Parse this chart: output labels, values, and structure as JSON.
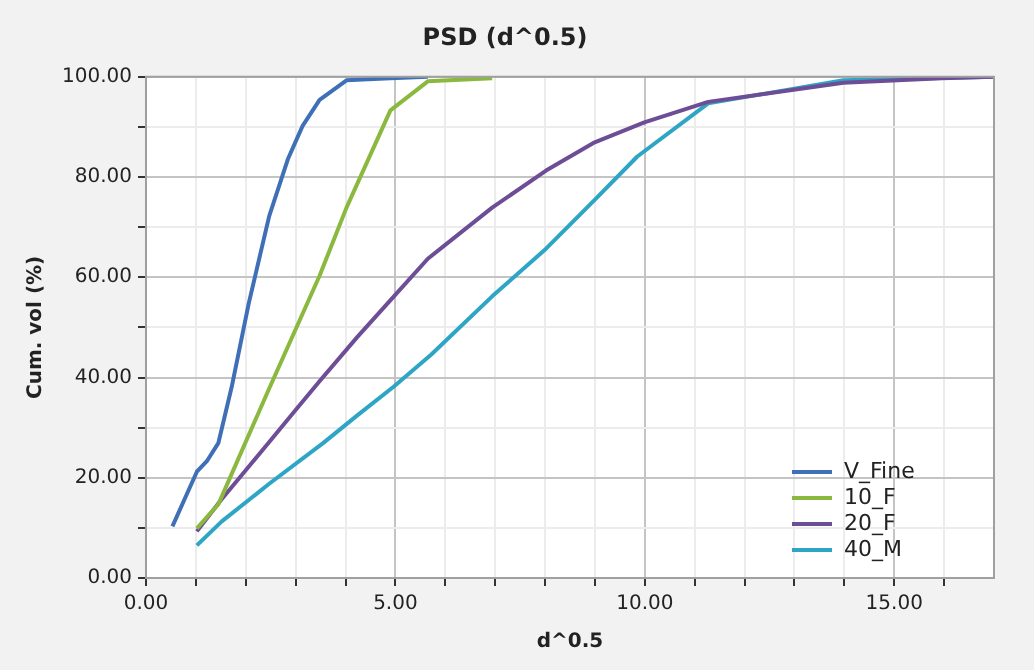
{
  "chart_data": {
    "type": "line",
    "title": "PSD (d^0.5)",
    "xlabel": "d^0.5",
    "ylabel": "Cum. vol (%)",
    "xlim": [
      0,
      17
    ],
    "xticks": [
      {
        "value": 0,
        "label": "0.00"
      },
      {
        "value": 1,
        "label": null
      },
      {
        "value": 2,
        "label": null
      },
      {
        "value": 3,
        "label": null
      },
      {
        "value": 4,
        "label": null
      },
      {
        "value": 5,
        "label": "5.00"
      },
      {
        "value": 6,
        "label": null
      },
      {
        "value": 7,
        "label": null
      },
      {
        "value": 8,
        "label": null
      },
      {
        "value": 9,
        "label": null
      },
      {
        "value": 10,
        "label": "10.00"
      },
      {
        "value": 11,
        "label": null
      },
      {
        "value": 12,
        "label": null
      },
      {
        "value": 13,
        "label": null
      },
      {
        "value": 14,
        "label": null
      },
      {
        "value": 15,
        "label": "15.00"
      },
      {
        "value": 16,
        "label": null
      }
    ],
    "ylim": [
      0,
      100
    ],
    "yticks": [
      {
        "value": 0,
        "label": "0.00"
      },
      {
        "value": 10,
        "label": null
      },
      {
        "value": 20,
        "label": "20.00"
      },
      {
        "value": 30,
        "label": null
      },
      {
        "value": 40,
        "label": "40.00"
      },
      {
        "value": 50,
        "label": null
      },
      {
        "value": 60,
        "label": "60.00"
      },
      {
        "value": 70,
        "label": null
      },
      {
        "value": 80,
        "label": "80.00"
      },
      {
        "value": 90,
        "label": null
      },
      {
        "value": 100,
        "label": "100.00"
      }
    ],
    "grid": true,
    "legend": "bottom right",
    "marker": "none",
    "line_style": "solid",
    "series": [
      {
        "name": "V_Fine",
        "color": "#3f6fb6",
        "x": [
          0.53,
          1.02,
          1.22,
          1.45,
          1.72,
          2.06,
          2.47,
          2.85,
          3.14,
          3.48,
          4.02,
          4.9,
          5.65
        ],
        "values": [
          10.3,
          21.2,
          23.3,
          26.9,
          38.2,
          54.8,
          72.2,
          83.7,
          90.2,
          95.4,
          99.3,
          99.7,
          100
        ]
      },
      {
        "name": "10_F",
        "color": "#8bb83e",
        "x": [
          1.02,
          1.45,
          2.47,
          3.48,
          4.02,
          4.9,
          5.65,
          6.94
        ],
        "values": [
          9.9,
          14.7,
          37.8,
          60.3,
          73.9,
          93.3,
          99.1,
          99.7
        ]
      },
      {
        "name": "20_F",
        "color": "#6e4d97",
        "x": [
          1.02,
          1.5,
          2,
          2.5,
          3,
          3.5,
          4.23,
          4.97,
          5.65,
          6.94,
          8.02,
          8.97,
          9.99,
          11.27,
          13.98,
          15.95,
          17
        ],
        "values": [
          9.3,
          15.5,
          21.5,
          27.5,
          33.5,
          39.5,
          48,
          56.2,
          63.7,
          73.9,
          81.3,
          86.8,
          90.9,
          95,
          98.8,
          99.7,
          100
        ]
      },
      {
        "name": "40_M",
        "color": "#2fa5c5",
        "x": [
          1.02,
          1.52,
          2.47,
          3.55,
          4.23,
          4.97,
          5.72,
          6.94,
          8.02,
          8.97,
          9.85,
          11.27,
          13.98,
          17
        ],
        "values": [
          6.5,
          11.3,
          18.8,
          26.9,
          32.4,
          38.2,
          44.6,
          56.2,
          65.7,
          75.2,
          84.1,
          94.7,
          99.3,
          100
        ]
      }
    ]
  }
}
